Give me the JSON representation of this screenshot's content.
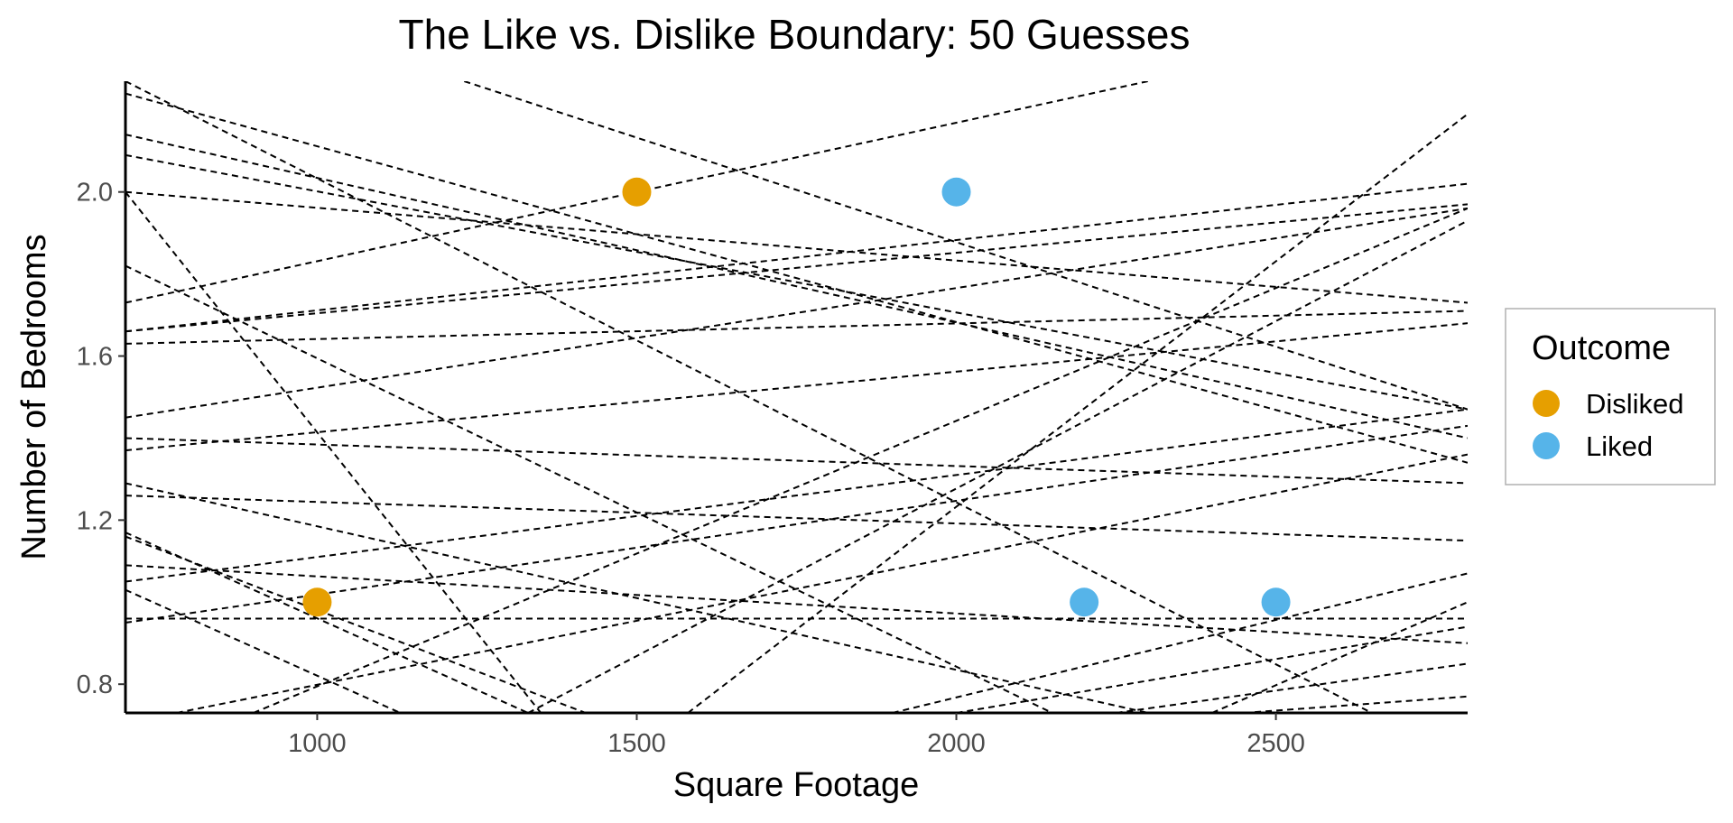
{
  "chart_data": {
    "type": "scatter",
    "title": "The Like vs. Dislike Boundary: 50 Guesses",
    "xlabel": "Square Footage",
    "ylabel": "Number of Bedrooms",
    "xlim": [
      700,
      2800
    ],
    "ylim": [
      0.73,
      2.27
    ],
    "x_ticks": [
      "1000",
      "1500",
      "2000",
      "2500"
    ],
    "y_ticks": [
      "0.8",
      "1.2",
      "1.6",
      "2.0"
    ],
    "grid": false,
    "legend": {
      "title": "Outcome",
      "placement": "right",
      "entries": [
        {
          "name": "Disliked",
          "color": "#E69F00"
        },
        {
          "name": "Liked",
          "color": "#56B4E9"
        }
      ]
    },
    "series": [
      {
        "name": "Disliked",
        "color": "#E69F00",
        "points": [
          {
            "x": 1000,
            "y": 1.0
          },
          {
            "x": 1500,
            "y": 2.0
          }
        ]
      },
      {
        "name": "Liked",
        "color": "#56B4E9",
        "points": [
          {
            "x": 2000,
            "y": 2.0
          },
          {
            "x": 2200,
            "y": 1.0
          },
          {
            "x": 2500,
            "y": 1.0
          }
        ]
      }
    ],
    "boundary_lines": [
      {
        "x1": 700,
        "y1": 1.73,
        "x2": 2300,
        "y2": 2.27
      },
      {
        "x1": 1230,
        "y1": 2.27,
        "x2": 2800,
        "y2": 1.47
      },
      {
        "x1": 700,
        "y1": 2.24,
        "x2": 2800,
        "y2": 1.34
      },
      {
        "x1": 700,
        "y1": 2.14,
        "x2": 2800,
        "y2": 1.4
      },
      {
        "x1": 700,
        "y1": 2.09,
        "x2": 2800,
        "y2": 1.47
      },
      {
        "x1": 700,
        "y1": 2.0,
        "x2": 1350,
        "y2": 0.73
      },
      {
        "x1": 700,
        "y1": 2.0,
        "x2": 2800,
        "y2": 1.73
      },
      {
        "x1": 700,
        "y1": 2.27,
        "x2": 2650,
        "y2": 0.73
      },
      {
        "x1": 700,
        "y1": 1.82,
        "x2": 2150,
        "y2": 0.73
      },
      {
        "x1": 700,
        "y1": 1.66,
        "x2": 2800,
        "y2": 2.02
      },
      {
        "x1": 700,
        "y1": 1.66,
        "x2": 2800,
        "y2": 1.97
      },
      {
        "x1": 700,
        "y1": 1.63,
        "x2": 2800,
        "y2": 1.71
      },
      {
        "x1": 700,
        "y1": 1.45,
        "x2": 2800,
        "y2": 1.96
      },
      {
        "x1": 700,
        "y1": 1.37,
        "x2": 2800,
        "y2": 1.68
      },
      {
        "x1": 700,
        "y1": 1.4,
        "x2": 2800,
        "y2": 1.29
      },
      {
        "x1": 700,
        "y1": 1.26,
        "x2": 2800,
        "y2": 1.15
      },
      {
        "x1": 700,
        "y1": 1.29,
        "x2": 2300,
        "y2": 0.73
      },
      {
        "x1": 700,
        "y1": 1.17,
        "x2": 1330,
        "y2": 0.73
      },
      {
        "x1": 700,
        "y1": 1.16,
        "x2": 1420,
        "y2": 0.73
      },
      {
        "x1": 700,
        "y1": 1.09,
        "x2": 2800,
        "y2": 0.9
      },
      {
        "x1": 700,
        "y1": 1.05,
        "x2": 2800,
        "y2": 1.47
      },
      {
        "x1": 700,
        "y1": 1.03,
        "x2": 1130,
        "y2": 0.73
      },
      {
        "x1": 700,
        "y1": 0.96,
        "x2": 2800,
        "y2": 0.96
      },
      {
        "x1": 700,
        "y1": 0.95,
        "x2": 2800,
        "y2": 1.43
      },
      {
        "x1": 780,
        "y1": 0.73,
        "x2": 2800,
        "y2": 1.36
      },
      {
        "x1": 900,
        "y1": 0.73,
        "x2": 2800,
        "y2": 1.96
      },
      {
        "x1": 1330,
        "y1": 0.73,
        "x2": 2800,
        "y2": 1.93
      },
      {
        "x1": 1580,
        "y1": 0.73,
        "x2": 2800,
        "y2": 2.19
      },
      {
        "x1": 1900,
        "y1": 0.73,
        "x2": 2800,
        "y2": 1.07
      },
      {
        "x1": 2000,
        "y1": 0.73,
        "x2": 2800,
        "y2": 0.94
      },
      {
        "x1": 2250,
        "y1": 0.73,
        "x2": 2800,
        "y2": 0.85
      },
      {
        "x1": 2450,
        "y1": 0.73,
        "x2": 2800,
        "y2": 0.77
      },
      {
        "x1": 2400,
        "y1": 0.73,
        "x2": 2800,
        "y2": 1.0
      }
    ]
  }
}
